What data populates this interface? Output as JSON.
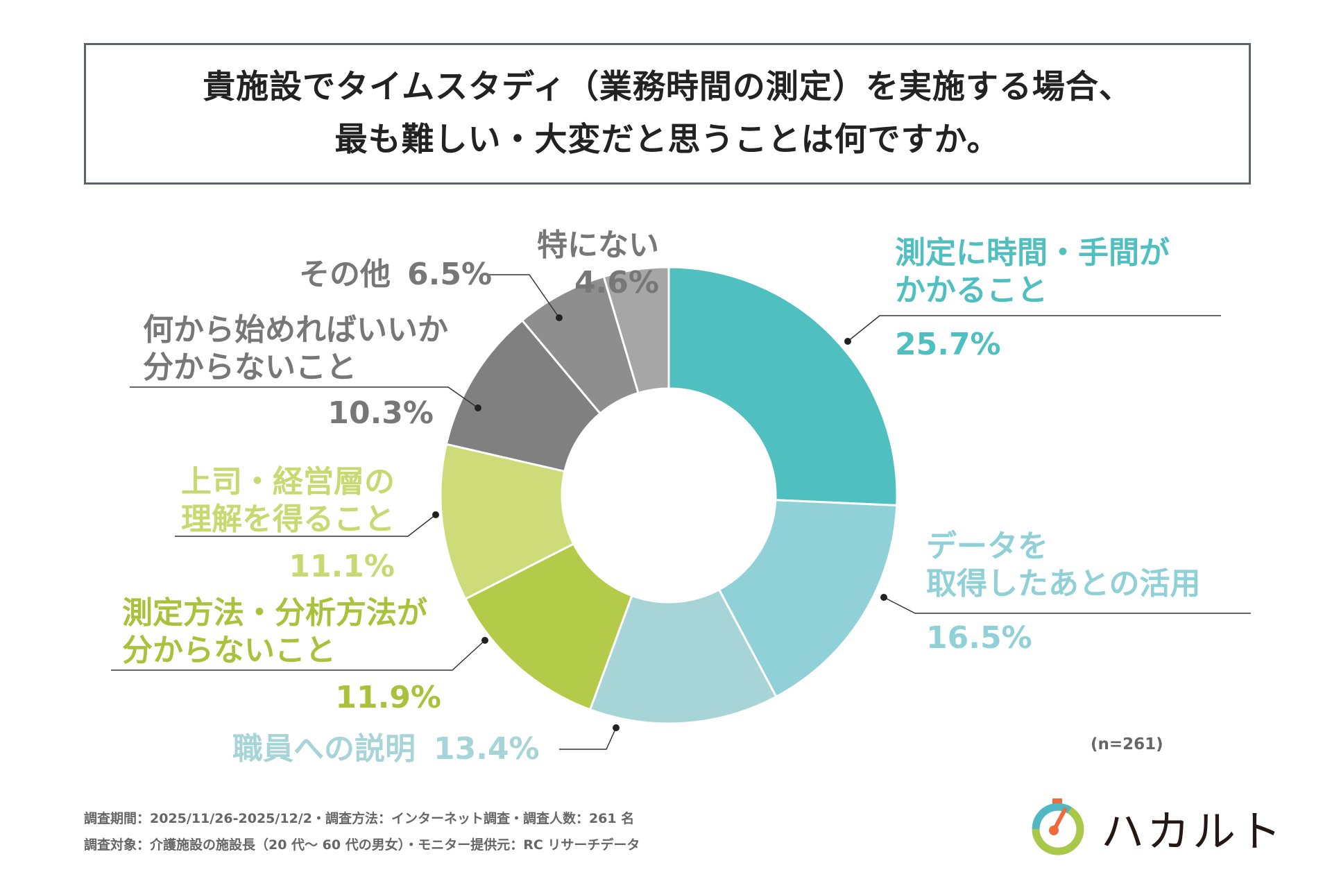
{
  "title": {
    "line1": "貴施設でタイムスタディ（業務時間の測定）を実施する場合、",
    "line2": "最も難しい・大変だと思うことは何ですか。"
  },
  "chart_data": {
    "type": "pie",
    "donut": true,
    "start": "top, clockwise",
    "slices": [
      {
        "label": [
          "測定に時間・手間が",
          "かかること"
        ],
        "value": 25.7,
        "display": "25.7%",
        "color": "#4fbfc0",
        "label_color": "#4fbfc0"
      },
      {
        "label": [
          "データを",
          "取得したあとの活用"
        ],
        "value": 16.5,
        "display": "16.5%",
        "color": "#8fd1d6",
        "label_color": "#8fd1d6"
      },
      {
        "label": [
          "職員への説明"
        ],
        "value": 13.4,
        "display": "13.4%",
        "color": "#a7d5d7",
        "label_color": "#a7d5d7"
      },
      {
        "label": [
          "測定方法・分析方法が",
          "分からないこと"
        ],
        "value": 11.9,
        "display": "11.9%",
        "color": "#b3cb49",
        "label_color": "#a9c23c"
      },
      {
        "label": [
          "上司・経営層の",
          "理解を得ること"
        ],
        "value": 11.1,
        "display": "11.1%",
        "color": "#cddc78",
        "label_color": "#c9d972"
      },
      {
        "label": [
          "何から始めればいいか",
          "分からないこと"
        ],
        "value": 10.3,
        "display": "10.3%",
        "color": "#808080",
        "label_color": "#777777"
      },
      {
        "label": [
          "その他"
        ],
        "value": 6.5,
        "display": "6.5%",
        "color": "#8e8e8e",
        "label_color": "#777777"
      },
      {
        "label": [
          "特にない"
        ],
        "value": 4.6,
        "display": "4.6%",
        "color": "#a6a6a6",
        "label_color": "#777777"
      }
    ]
  },
  "sample": "(n=261)",
  "footer": {
    "line1": "調査期間：2025/11/26-2025/12/2・調査方法：インターネット調査・調査人数：261 名",
    "line2": "調査対象：介護施設の施設長（20 代～ 60 代の男女）・モニター提供元：RC リサーチデータ"
  },
  "logo": {
    "text": "ハカルト",
    "colors": {
      "teal": "#4fb8c4",
      "green": "#a9c84a",
      "orange": "#ee6a3a"
    }
  }
}
